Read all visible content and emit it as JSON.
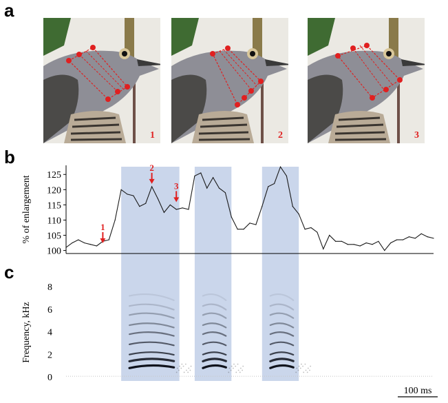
{
  "panels": {
    "a": "a",
    "b": "b",
    "c": "c"
  },
  "photos": [
    {
      "label": "1"
    },
    {
      "label": "2"
    },
    {
      "label": "3"
    }
  ],
  "colors": {
    "annotation": "#e02020",
    "highlight": "#b8c8e4",
    "line": "#1a1a1a"
  },
  "chart_data": [
    {
      "type": "line",
      "ylabel": "% of enlargement",
      "ylim": [
        99,
        128
      ],
      "yticks": [
        100,
        105,
        110,
        115,
        120,
        125
      ],
      "x": [
        0,
        1,
        2,
        3,
        4,
        5,
        6,
        7,
        8,
        9,
        10,
        11,
        12,
        13,
        14,
        15,
        16,
        17,
        18,
        19,
        20,
        21,
        22,
        23,
        24,
        25,
        26,
        27,
        28,
        29,
        30,
        31,
        32,
        33,
        34,
        35,
        36,
        37,
        38,
        39,
        40,
        41,
        42,
        43,
        44,
        45,
        46,
        47,
        48,
        49,
        50,
        51,
        52,
        53,
        54,
        55,
        56,
        57,
        58,
        59,
        60
      ],
      "values": [
        101,
        102.5,
        103.5,
        102.5,
        102,
        101.5,
        103,
        103.5,
        110,
        120,
        118.5,
        118,
        114.5,
        115.5,
        121,
        117,
        112.5,
        115,
        113.5,
        114,
        113.5,
        124.5,
        125.5,
        120.5,
        124,
        120.5,
        119,
        111,
        107,
        107,
        109,
        108.5,
        114.5,
        121,
        122,
        127.5,
        124.5,
        114.5,
        112,
        107,
        107.5,
        106,
        100.5,
        105,
        103,
        103,
        102,
        102,
        101.5,
        102.5,
        102,
        103,
        100,
        102.5,
        103.5,
        103.5,
        104.5,
        104,
        105.5,
        104.5,
        104
      ],
      "highlight_ranges": [
        [
          9,
          18.5
        ],
        [
          21,
          27
        ],
        [
          32,
          38
        ]
      ],
      "annotations": [
        {
          "label": "1",
          "x": 6,
          "y": 101.5
        },
        {
          "label": "2",
          "x": 14,
          "y": 121
        },
        {
          "label": "3",
          "x": 18,
          "y": 115
        }
      ]
    },
    {
      "type": "heatmap",
      "ylabel": "Frequency, kHz",
      "ylim": [
        0,
        8
      ],
      "yticks": [
        0,
        2,
        4,
        6,
        8
      ],
      "harmonics_khz": [
        0.9,
        1.5,
        2.1,
        3.0,
        3.9,
        4.7,
        5.6,
        6.4,
        7.3
      ],
      "scale_bar": "100 ms"
    }
  ]
}
